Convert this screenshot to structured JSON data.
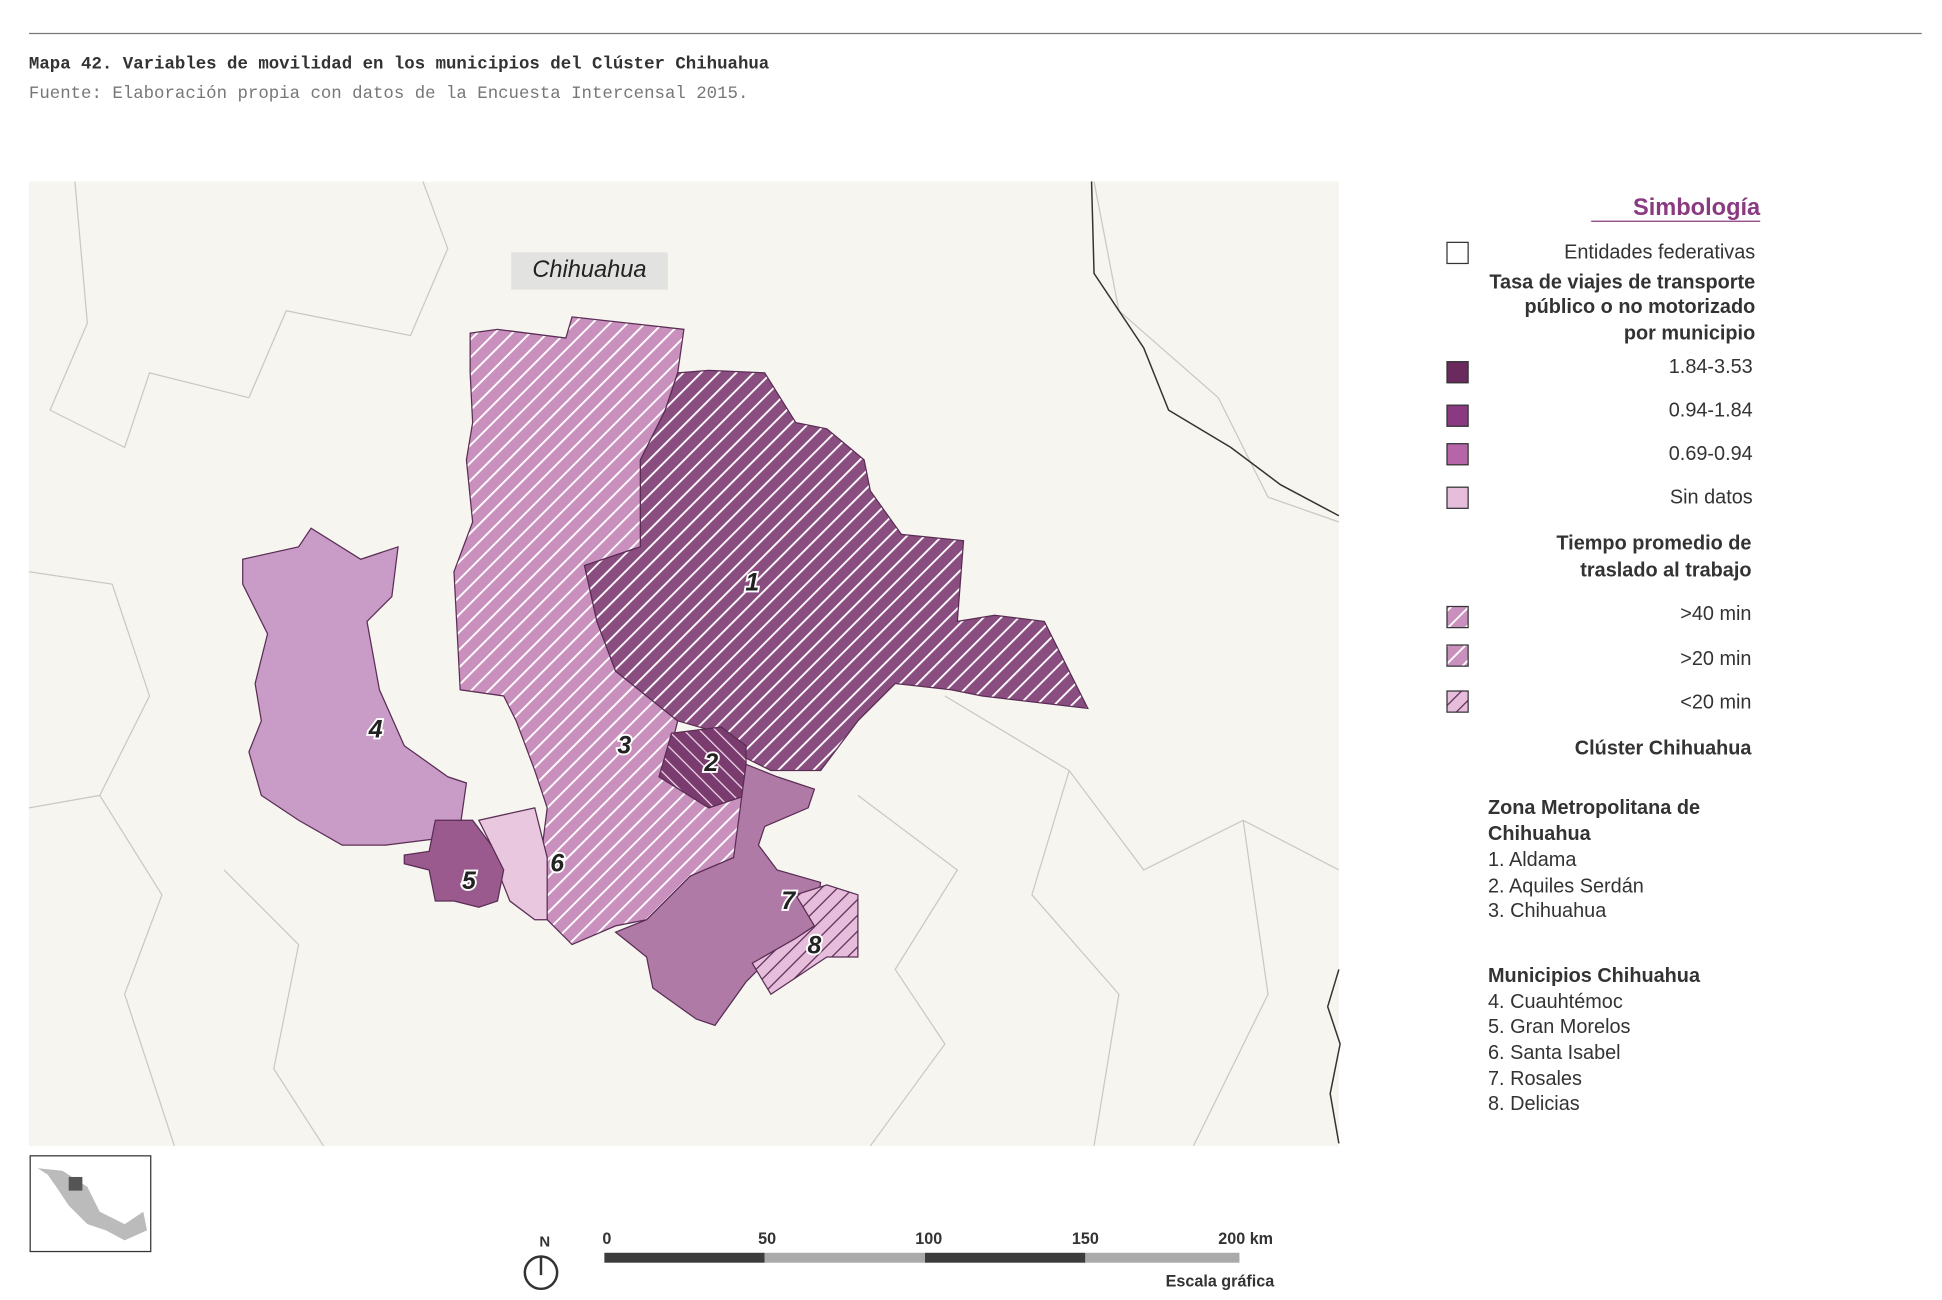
{
  "header": {
    "title": "Mapa 42. Variables de movilidad en los municipios del Clúster Chihuahua",
    "source": "Fuente: Elaboración propia con datos de la Encuesta Intercensal 2015."
  },
  "map": {
    "state_label": "Chihuahua",
    "municipality_numbers": [
      "1",
      "2",
      "3",
      "4",
      "5",
      "6",
      "7",
      "8"
    ]
  },
  "legend": {
    "title": "Simbología",
    "entities": "Entidades federativas",
    "rate_title": [
      "Tasa de viajes de transporte",
      "público o no motorizado",
      "por municipio"
    ],
    "rate_classes": [
      "1.84-3.53",
      "0.94-1.84",
      "0.69-0.94",
      "Sin datos"
    ],
    "time_title": [
      "Tiempo promedio de",
      "traslado al trabajo"
    ],
    "time_classes": [
      ">40 min",
      ">20 min",
      "<20 min"
    ],
    "cluster_title": "Clúster Chihuahua",
    "groups": [
      {
        "title": [
          "Zona Metropolitana de",
          "Chihuahua"
        ],
        "items": [
          "1. Aldama",
          "2. Aquiles Serdán",
          "3. Chihuahua"
        ]
      },
      {
        "title": [
          "Municipios Chihuahua"
        ],
        "items": [
          "4. Cuauhtémoc",
          "5. Gran Morelos",
          "6. Santa Isabel",
          "7. Rosales",
          "8. Delicias"
        ]
      }
    ]
  },
  "scale": {
    "north": "N",
    "ticks": [
      "0",
      "50",
      "100",
      "150",
      "200 km"
    ],
    "caption": "Escala gráfica"
  }
}
